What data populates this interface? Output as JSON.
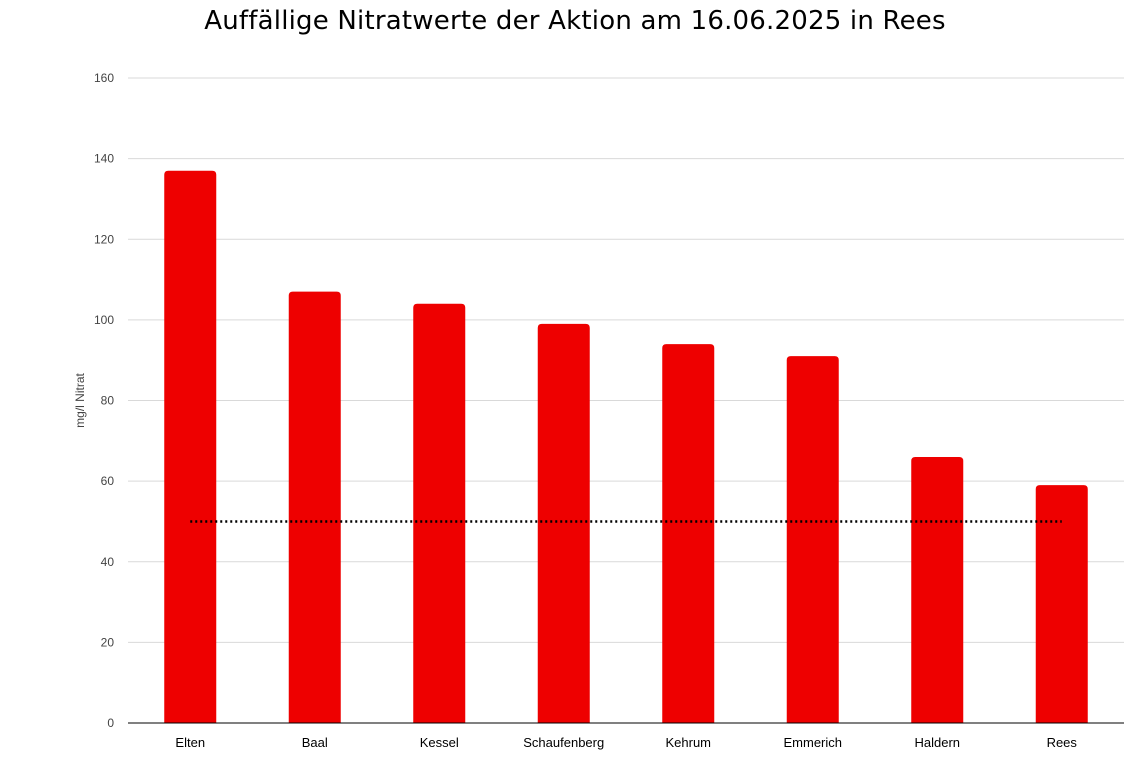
{
  "chart_data": {
    "type": "bar",
    "title": "Auffällige Nitratwerte der Aktion am 16.06.2025  in Rees",
    "xlabel": "",
    "ylabel": "mg/l Nitrat",
    "categories": [
      "Elten",
      "Baal",
      "Kessel",
      "Schaufenberg",
      "Kehrum",
      "Emmerich",
      "Haldern",
      "Rees"
    ],
    "values": [
      137,
      107,
      104,
      99,
      94,
      91,
      66,
      59
    ],
    "ylim": [
      0,
      160
    ],
    "yticks": [
      0,
      20,
      40,
      60,
      80,
      100,
      120,
      140,
      160
    ],
    "reference_line": {
      "value": 50,
      "style": "dotted"
    },
    "grid": true,
    "legend": "none",
    "bar_color": "#ee0000",
    "grid_color": "#d9d9d9",
    "axis_color": "#000000"
  }
}
